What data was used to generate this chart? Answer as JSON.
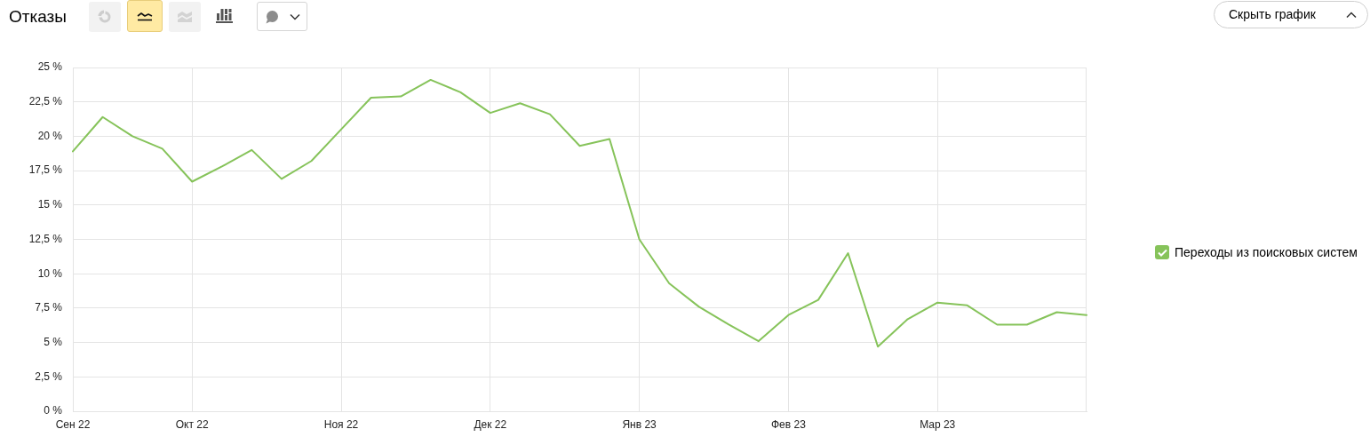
{
  "chart_data": {
    "type": "line",
    "title": "Отказы",
    "annotations": [
      "Скрыть график"
    ],
    "categories": [
      "Сен 22",
      null,
      null,
      null,
      "Окт 22",
      null,
      null,
      null,
      null,
      "Ноя 22",
      null,
      null,
      null,
      null,
      "Дек 22",
      null,
      null,
      null,
      null,
      "Янв 23",
      null,
      null,
      null,
      null,
      "Фев 23",
      null,
      null,
      null,
      null,
      "Мар 23",
      null,
      null,
      null,
      null,
      null
    ],
    "series": [
      {
        "name": "Переходы из поисковых систем",
        "color": "#86c35a",
        "values": [
          18.9,
          21.4,
          20.0,
          19.1,
          16.7,
          17.8,
          19.0,
          16.9,
          18.2,
          20.5,
          22.8,
          22.9,
          24.1,
          23.2,
          21.7,
          22.4,
          21.6,
          19.3,
          19.8,
          12.5,
          9.3,
          7.6,
          6.3,
          5.1,
          7.0,
          8.1,
          11.5,
          4.7,
          6.7,
          7.9,
          7.7,
          6.3,
          6.3,
          7.2,
          7.0
        ]
      }
    ],
    "ylim": [
      0,
      25
    ],
    "yticks": [
      {
        "value": 0,
        "label": "0 %"
      },
      {
        "value": 2.5,
        "label": "2,5 %"
      },
      {
        "value": 5,
        "label": "5 %"
      },
      {
        "value": 7.5,
        "label": "7,5 %"
      },
      {
        "value": 10,
        "label": "10 %"
      },
      {
        "value": 12.5,
        "label": "12,5 %"
      },
      {
        "value": 15,
        "label": "15 %"
      },
      {
        "value": 17.5,
        "label": "17,5 %"
      },
      {
        "value": 20,
        "label": "20 %"
      },
      {
        "value": 22.5,
        "label": "22,5 %"
      },
      {
        "value": 25,
        "label": "25 %"
      }
    ],
    "grid": true,
    "legend": "right",
    "marker": "none"
  }
}
